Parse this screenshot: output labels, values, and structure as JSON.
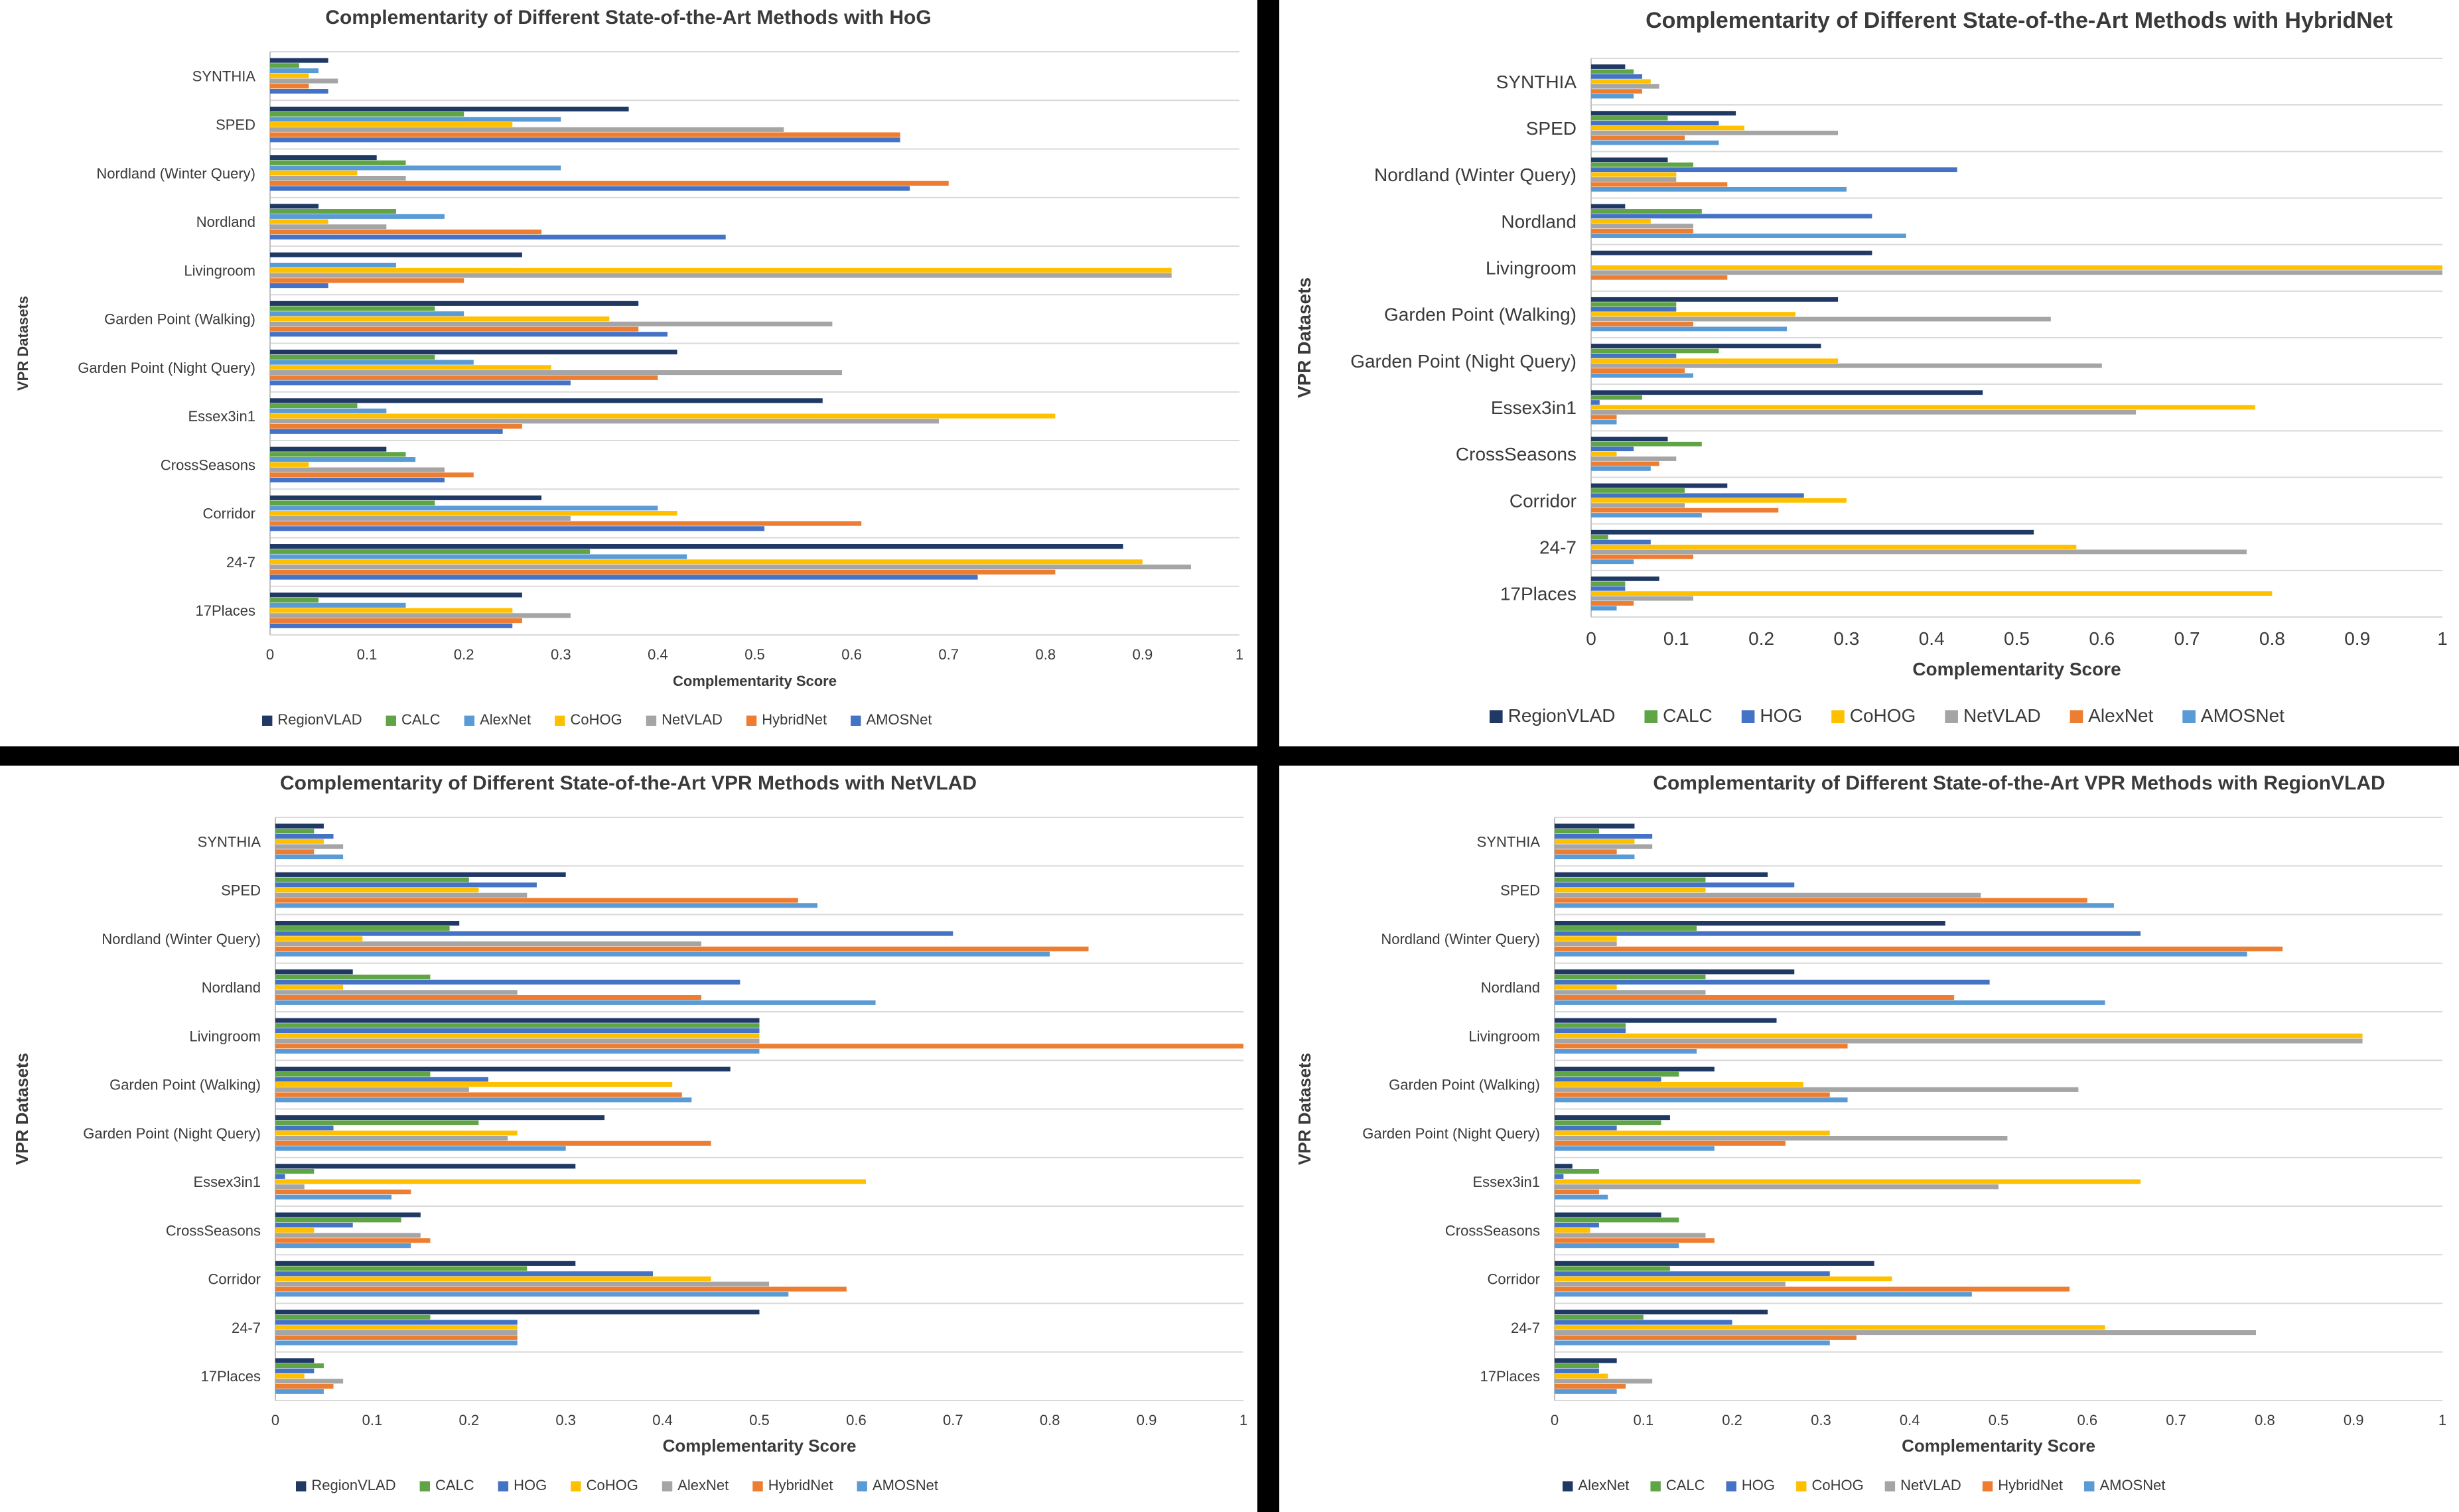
{
  "colors": {
    "navy": "#1f3864",
    "green": "#5fa545",
    "blue": "#4472c4",
    "yellow": "#ffc000",
    "gray": "#a5a5a5",
    "orange": "#ed7d31",
    "lightblue": "#5b9bd5"
  },
  "chart_data": [
    {
      "type": "bar",
      "orientation": "horizontal",
      "title": "Complementarity of Different State-of-the-Art Methods with HoG",
      "xlabel": "Complementarity Score",
      "ylabel": "VPR Datasets",
      "xlim": [
        0,
        1
      ],
      "xticks": [
        "0",
        "0.1",
        "0.2",
        "0.3",
        "0.4",
        "0.5",
        "0.6",
        "0.7",
        "0.8",
        "0.9",
        "1"
      ],
      "categories": [
        "SYNTHIA",
        "SPED",
        "Nordland (Winter Query)",
        "Nordland",
        "Livingroom",
        "Garden Point (Walking)",
        "Garden Point (Night Query)",
        "Essex3in1",
        "CrossSeasons",
        "Corridor",
        "24-7",
        "17Places"
      ],
      "series": [
        {
          "name": "RegionVLAD",
          "color": "navy",
          "values": [
            0.06,
            0.37,
            0.11,
            0.05,
            0.26,
            0.38,
            0.42,
            0.57,
            0.12,
            0.28,
            0.88,
            0.26
          ]
        },
        {
          "name": "CALC",
          "color": "green",
          "values": [
            0.03,
            0.2,
            0.14,
            0.13,
            0.0,
            0.17,
            0.17,
            0.09,
            0.14,
            0.17,
            0.33,
            0.05
          ]
        },
        {
          "name": "AlexNet",
          "color": "lightblue",
          "values": [
            0.05,
            0.3,
            0.3,
            0.18,
            0.13,
            0.2,
            0.21,
            0.12,
            0.15,
            0.4,
            0.43,
            0.14
          ]
        },
        {
          "name": "CoHOG",
          "color": "yellow",
          "values": [
            0.04,
            0.25,
            0.09,
            0.06,
            0.93,
            0.35,
            0.29,
            0.81,
            0.04,
            0.42,
            0.9,
            0.25
          ]
        },
        {
          "name": "NetVLAD",
          "color": "gray",
          "values": [
            0.07,
            0.53,
            0.14,
            0.12,
            0.93,
            0.58,
            0.59,
            0.69,
            0.18,
            0.31,
            0.95,
            0.31
          ]
        },
        {
          "name": "HybridNet",
          "color": "orange",
          "values": [
            0.04,
            0.65,
            0.7,
            0.28,
            0.2,
            0.38,
            0.4,
            0.26,
            0.21,
            0.61,
            0.81,
            0.26
          ]
        },
        {
          "name": "AMOSNet",
          "color": "blue",
          "values": [
            0.06,
            0.65,
            0.66,
            0.47,
            0.06,
            0.41,
            0.31,
            0.24,
            0.18,
            0.51,
            0.73,
            0.25
          ]
        }
      ]
    },
    {
      "type": "bar",
      "orientation": "horizontal",
      "title": "Complementarity of Different State-of-the-Art Methods with HybridNet",
      "xlabel": "Complementarity Score",
      "ylabel": "VPR Datasets",
      "xlim": [
        0,
        1
      ],
      "xticks": [
        "0",
        "0.1",
        "0.2",
        "0.3",
        "0.4",
        "0.5",
        "0.6",
        "0.7",
        "0.8",
        "0.9",
        "1"
      ],
      "categories": [
        "SYNTHIA",
        "SPED",
        "Nordland (Winter Query)",
        "Nordland",
        "Livingroom",
        "Garden Point (Walking)",
        "Garden Point (Night Query)",
        "Essex3in1",
        "CrossSeasons",
        "Corridor",
        "24-7",
        "17Places"
      ],
      "series": [
        {
          "name": "RegionVLAD",
          "color": "navy",
          "values": [
            0.04,
            0.17,
            0.09,
            0.04,
            0.33,
            0.29,
            0.27,
            0.46,
            0.09,
            0.16,
            0.52,
            0.08
          ]
        },
        {
          "name": "CALC",
          "color": "green",
          "values": [
            0.05,
            0.09,
            0.12,
            0.13,
            0.0,
            0.1,
            0.15,
            0.06,
            0.13,
            0.11,
            0.02,
            0.04
          ]
        },
        {
          "name": "HOG",
          "color": "blue",
          "values": [
            0.06,
            0.15,
            0.43,
            0.33,
            0.0,
            0.1,
            0.1,
            0.01,
            0.05,
            0.25,
            0.07,
            0.04
          ]
        },
        {
          "name": "CoHOG",
          "color": "yellow",
          "values": [
            0.07,
            0.18,
            0.1,
            0.07,
            1.0,
            0.24,
            0.29,
            0.78,
            0.03,
            0.3,
            0.57,
            0.8
          ]
        },
        {
          "name": "NetVLAD",
          "color": "gray",
          "values": [
            0.08,
            0.29,
            0.1,
            0.12,
            1.0,
            0.54,
            0.6,
            0.64,
            0.1,
            0.11,
            0.77,
            0.12
          ]
        },
        {
          "name": "AlexNet",
          "color": "orange",
          "values": [
            0.06,
            0.11,
            0.16,
            0.12,
            0.16,
            0.12,
            0.11,
            0.03,
            0.08,
            0.22,
            0.12,
            0.05
          ]
        },
        {
          "name": "AMOSNet",
          "color": "lightblue",
          "values": [
            0.05,
            0.15,
            0.3,
            0.37,
            0.0,
            0.23,
            0.12,
            0.03,
            0.07,
            0.13,
            0.05,
            0.03
          ]
        }
      ]
    },
    {
      "type": "bar",
      "orientation": "horizontal",
      "title": "Complementarity of Different State-of-the-Art VPR Methods with NetVLAD",
      "xlabel": "Complementarity Score",
      "ylabel": "VPR Datasets",
      "xlim": [
        0,
        1
      ],
      "xticks": [
        "0",
        "0.1",
        "0.2",
        "0.3",
        "0.4",
        "0.5",
        "0.6",
        "0.7",
        "0.8",
        "0.9",
        "1"
      ],
      "categories": [
        "SYNTHIA",
        "SPED",
        "Nordland (Winter Query)",
        "Nordland",
        "Livingroom",
        "Garden Point (Walking)",
        "Garden Point (Night Query)",
        "Essex3in1",
        "CrossSeasons",
        "Corridor",
        "24-7",
        "17Places"
      ],
      "series": [
        {
          "name": "RegionVLAD",
          "color": "navy",
          "values": [
            0.05,
            0.3,
            0.19,
            0.08,
            0.5,
            0.47,
            0.34,
            0.31,
            0.15,
            0.31,
            0.5,
            0.04
          ]
        },
        {
          "name": "CALC",
          "color": "green",
          "values": [
            0.04,
            0.2,
            0.18,
            0.16,
            0.5,
            0.16,
            0.21,
            0.04,
            0.13,
            0.26,
            0.16,
            0.05
          ]
        },
        {
          "name": "HOG",
          "color": "blue",
          "values": [
            0.06,
            0.27,
            0.7,
            0.48,
            0.5,
            0.22,
            0.06,
            0.01,
            0.08,
            0.39,
            0.25,
            0.04
          ]
        },
        {
          "name": "CoHOG",
          "color": "yellow",
          "values": [
            0.05,
            0.21,
            0.09,
            0.07,
            0.5,
            0.41,
            0.25,
            0.61,
            0.04,
            0.45,
            0.25,
            0.03
          ]
        },
        {
          "name": "AlexNet",
          "color": "gray",
          "values": [
            0.07,
            0.26,
            0.44,
            0.25,
            0.5,
            0.2,
            0.24,
            0.03,
            0.15,
            0.51,
            0.25,
            0.07
          ]
        },
        {
          "name": "HybridNet",
          "color": "orange",
          "values": [
            0.04,
            0.54,
            0.84,
            0.44,
            1.0,
            0.42,
            0.45,
            0.14,
            0.16,
            0.59,
            0.25,
            0.06
          ]
        },
        {
          "name": "AMOSNet",
          "color": "lightblue",
          "values": [
            0.07,
            0.56,
            0.8,
            0.62,
            0.5,
            0.43,
            0.3,
            0.12,
            0.14,
            0.53,
            0.25,
            0.05
          ]
        }
      ]
    },
    {
      "type": "bar",
      "orientation": "horizontal",
      "title": "Complementarity of Different State-of-the-Art VPR Methods with RegionVLAD",
      "xlabel": "Complementarity Score",
      "ylabel": "VPR Datasets",
      "xlim": [
        0,
        1
      ],
      "xticks": [
        "0",
        "0.1",
        "0.2",
        "0.3",
        "0.4",
        "0.5",
        "0.6",
        "0.7",
        "0.8",
        "0.9",
        "1"
      ],
      "categories": [
        "SYNTHIA",
        "SPED",
        "Nordland (Winter Query)",
        "Nordland",
        "Livingroom",
        "Garden Point (Walking)",
        "Garden Point (Night Query)",
        "Essex3in1",
        "CrossSeasons",
        "Corridor",
        "24-7",
        "17Places"
      ],
      "series": [
        {
          "name": "AlexNet",
          "color": "navy",
          "values": [
            0.09,
            0.24,
            0.44,
            0.27,
            0.25,
            0.18,
            0.13,
            0.02,
            0.12,
            0.36,
            0.24,
            0.07
          ]
        },
        {
          "name": "CALC",
          "color": "green",
          "values": [
            0.05,
            0.17,
            0.16,
            0.17,
            0.08,
            0.14,
            0.12,
            0.05,
            0.14,
            0.13,
            0.1,
            0.05
          ]
        },
        {
          "name": "HOG",
          "color": "blue",
          "values": [
            0.11,
            0.27,
            0.66,
            0.49,
            0.08,
            0.12,
            0.07,
            0.01,
            0.05,
            0.31,
            0.2,
            0.05
          ]
        },
        {
          "name": "CoHOG",
          "color": "yellow",
          "values": [
            0.09,
            0.17,
            0.07,
            0.07,
            0.91,
            0.28,
            0.31,
            0.66,
            0.04,
            0.38,
            0.62,
            0.06
          ]
        },
        {
          "name": "NetVLAD",
          "color": "gray",
          "values": [
            0.11,
            0.48,
            0.07,
            0.17,
            0.91,
            0.59,
            0.51,
            0.5,
            0.17,
            0.26,
            0.79,
            0.11
          ]
        },
        {
          "name": "HybridNet",
          "color": "orange",
          "values": [
            0.07,
            0.6,
            0.82,
            0.45,
            0.33,
            0.31,
            0.26,
            0.05,
            0.18,
            0.58,
            0.34,
            0.08
          ]
        },
        {
          "name": "AMOSNet",
          "color": "lightblue",
          "values": [
            0.09,
            0.63,
            0.78,
            0.62,
            0.16,
            0.33,
            0.18,
            0.06,
            0.14,
            0.47,
            0.31,
            0.07
          ]
        }
      ]
    }
  ]
}
